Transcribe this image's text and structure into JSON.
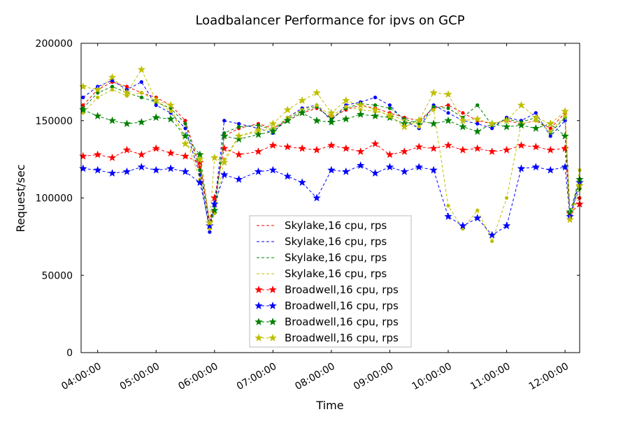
{
  "chart_data": {
    "type": "line",
    "title": "Loadbalancer Performance for ipvs on GCP",
    "xlabel": "Time",
    "ylabel": "Request/sec",
    "xlim": [
      "03:43:00",
      "12:15:00"
    ],
    "ylim": [
      0,
      200000
    ],
    "yticks": [
      0,
      50000,
      100000,
      150000,
      200000
    ],
    "yticklabels": [
      "0",
      "50000",
      "100000",
      "150000",
      "200000"
    ],
    "xticks": [
      "04:00:00",
      "05:00:00",
      "06:00:00",
      "07:00:00",
      "08:00:00",
      "09:00:00",
      "10:00:00",
      "11:00:00",
      "12:00:00"
    ],
    "grid": false,
    "legend_position": "lower-center",
    "series": [
      {
        "name": "Skylake,16 cpu, rps",
        "color": "#ff0000",
        "marker": "dot",
        "x": [
          "03:45",
          "04:00",
          "04:15",
          "04:30",
          "04:45",
          "05:00",
          "05:15",
          "05:30",
          "05:45",
          "05:55",
          "06:00",
          "06:10",
          "06:25",
          "06:45",
          "07:00",
          "07:15",
          "07:30",
          "07:45",
          "08:00",
          "08:15",
          "08:30",
          "08:45",
          "09:00",
          "09:15",
          "09:30",
          "09:45",
          "10:00",
          "10:15",
          "10:30",
          "10:45",
          "11:00",
          "11:15",
          "11:30",
          "11:45",
          "12:00",
          "12:05",
          "12:15"
        ],
        "y": [
          160000,
          170000,
          175000,
          172000,
          168000,
          165000,
          160000,
          150000,
          120000,
          85000,
          95000,
          140000,
          145000,
          148000,
          145000,
          150000,
          155000,
          158000,
          152000,
          157000,
          160000,
          158000,
          155000,
          152000,
          150000,
          158000,
          160000,
          155000,
          150000,
          148000,
          150000,
          148000,
          150000,
          145000,
          155000,
          90000,
          100000
        ]
      },
      {
        "name": "Skylake,16 cpu, rps",
        "color": "#0000ff",
        "marker": "dot",
        "x": [
          "03:45",
          "04:00",
          "04:15",
          "04:30",
          "04:45",
          "05:00",
          "05:15",
          "05:30",
          "05:45",
          "05:55",
          "06:00",
          "06:10",
          "06:25",
          "06:45",
          "07:00",
          "07:15",
          "07:30",
          "07:45",
          "08:00",
          "08:15",
          "08:30",
          "08:45",
          "09:00",
          "09:15",
          "09:30",
          "09:45",
          "10:00",
          "10:15",
          "10:30",
          "10:45",
          "11:00",
          "11:15",
          "11:30",
          "11:45",
          "12:00",
          "12:05",
          "12:15"
        ],
        "y": [
          165000,
          172000,
          176000,
          170000,
          175000,
          160000,
          155000,
          145000,
          115000,
          78000,
          95000,
          150000,
          148000,
          145000,
          142000,
          152000,
          158000,
          160000,
          150000,
          160000,
          162000,
          165000,
          160000,
          150000,
          145000,
          160000,
          155000,
          150000,
          148000,
          145000,
          152000,
          150000,
          155000,
          140000,
          150000,
          88000,
          112000
        ]
      },
      {
        "name": "Skylake,16 cpu, rps",
        "color": "#008000",
        "marker": "dot",
        "x": [
          "03:45",
          "04:00",
          "04:15",
          "04:30",
          "04:45",
          "05:00",
          "05:15",
          "05:30",
          "05:45",
          "05:55",
          "06:00",
          "06:10",
          "06:25",
          "06:45",
          "07:00",
          "07:15",
          "07:30",
          "07:45",
          "08:00",
          "08:15",
          "08:30",
          "08:45",
          "09:00",
          "09:15",
          "09:30",
          "09:45",
          "10:00",
          "10:15",
          "10:30",
          "10:45",
          "11:00",
          "11:15",
          "11:30",
          "11:45",
          "12:00",
          "12:05",
          "12:15"
        ],
        "y": [
          158000,
          168000,
          172000,
          168000,
          165000,
          162000,
          158000,
          148000,
          118000,
          82000,
          92000,
          142000,
          146000,
          147000,
          144000,
          151000,
          156000,
          159000,
          151000,
          158000,
          161000,
          160000,
          158000,
          151000,
          148000,
          159000,
          158000,
          152000,
          160000,
          147000,
          151000,
          149000,
          152000,
          142000,
          152000,
          89000,
          106000
        ]
      },
      {
        "name": "Skylake,16 cpu, rps",
        "color": "#bfbf00",
        "marker": "dot",
        "x": [
          "03:45",
          "04:00",
          "04:15",
          "04:30",
          "04:45",
          "05:00",
          "05:15",
          "05:30",
          "05:45",
          "05:55",
          "06:00",
          "06:10",
          "06:25",
          "06:45",
          "07:00",
          "07:15",
          "07:30",
          "07:45",
          "08:00",
          "08:15",
          "08:30",
          "08:45",
          "09:00",
          "09:15",
          "09:30",
          "09:45",
          "10:00",
          "10:15",
          "10:30",
          "10:45",
          "11:00",
          "11:15",
          "11:30",
          "11:45",
          "12:00",
          "12:05",
          "12:15"
        ],
        "y": [
          155000,
          165000,
          170000,
          166000,
          168000,
          163000,
          156000,
          140000,
          112000,
          80000,
          90000,
          125000,
          140000,
          143000,
          145000,
          152000,
          157000,
          160000,
          153000,
          159000,
          157000,
          156000,
          154000,
          150000,
          146000,
          157000,
          95000,
          80000,
          92000,
          72000,
          100000,
          148000,
          150000,
          143000,
          153000,
          86000,
          118000
        ]
      },
      {
        "name": "Broadwell,16 cpu, rps",
        "color": "#ff0000",
        "marker": "star",
        "x": [
          "03:45",
          "04:00",
          "04:15",
          "04:30",
          "04:45",
          "05:00",
          "05:15",
          "05:30",
          "05:45",
          "05:55",
          "06:00",
          "06:10",
          "06:25",
          "06:45",
          "07:00",
          "07:15",
          "07:30",
          "07:45",
          "08:00",
          "08:15",
          "08:30",
          "08:45",
          "09:00",
          "09:15",
          "09:30",
          "09:45",
          "10:00",
          "10:15",
          "10:30",
          "10:45",
          "11:00",
          "11:15",
          "11:30",
          "11:45",
          "12:00",
          "12:05",
          "12:15"
        ],
        "y": [
          127000,
          128000,
          126000,
          131000,
          128000,
          132000,
          129000,
          127000,
          123000,
          84000,
          100000,
          132000,
          128000,
          130000,
          134000,
          133000,
          132000,
          131000,
          134000,
          132000,
          130000,
          135000,
          128000,
          130000,
          133000,
          132000,
          134000,
          131000,
          132000,
          130000,
          131000,
          134000,
          133000,
          131000,
          132000,
          90000,
          96000
        ]
      },
      {
        "name": "Broadwell,16 cpu, rps",
        "color": "#0000ff",
        "marker": "star",
        "x": [
          "03:45",
          "04:00",
          "04:15",
          "04:30",
          "04:45",
          "05:00",
          "05:15",
          "05:30",
          "05:45",
          "05:55",
          "06:00",
          "06:10",
          "06:25",
          "06:45",
          "07:00",
          "07:15",
          "07:30",
          "07:45",
          "08:00",
          "08:15",
          "08:30",
          "08:45",
          "09:00",
          "09:15",
          "09:30",
          "09:45",
          "10:00",
          "10:15",
          "10:30",
          "10:45",
          "11:00",
          "11:15",
          "11:30",
          "11:45",
          "12:00",
          "12:05",
          "12:15"
        ],
        "y": [
          119000,
          118000,
          116000,
          117000,
          120000,
          118000,
          119000,
          117000,
          110000,
          82000,
          96000,
          115000,
          112000,
          117000,
          118000,
          114000,
          110000,
          100000,
          118000,
          117000,
          121000,
          116000,
          120000,
          117000,
          120000,
          118000,
          88000,
          82000,
          87000,
          76000,
          82000,
          119000,
          120000,
          118000,
          120000,
          88000,
          110000
        ]
      },
      {
        "name": "Broadwell,16 cpu, rps",
        "color": "#008000",
        "marker": "star",
        "x": [
          "03:45",
          "04:00",
          "04:15",
          "04:30",
          "04:45",
          "05:00",
          "05:15",
          "05:30",
          "05:45",
          "05:55",
          "06:00",
          "06:10",
          "06:25",
          "06:45",
          "07:00",
          "07:15",
          "07:30",
          "07:45",
          "08:00",
          "08:15",
          "08:30",
          "08:45",
          "09:00",
          "09:15",
          "09:30",
          "09:45",
          "10:00",
          "10:15",
          "10:30",
          "10:45",
          "11:00",
          "11:15",
          "11:30",
          "11:45",
          "12:00",
          "12:05",
          "12:15"
        ],
        "y": [
          157000,
          153000,
          150000,
          148000,
          149000,
          152000,
          151000,
          140000,
          128000,
          84000,
          92000,
          140000,
          138000,
          141000,
          143000,
          150000,
          155000,
          150000,
          149000,
          151000,
          154000,
          153000,
          152000,
          148000,
          150000,
          148000,
          150000,
          146000,
          143000,
          148000,
          146000,
          147000,
          145000,
          148000,
          140000,
          91000,
          112000
        ]
      },
      {
        "name": "Broadwell,16 cpu, rps",
        "color": "#bfbf00",
        "marker": "star",
        "x": [
          "03:45",
          "04:00",
          "04:15",
          "04:30",
          "04:45",
          "05:00",
          "05:15",
          "05:30",
          "05:45",
          "05:55",
          "06:00",
          "06:10",
          "06:25",
          "06:45",
          "07:00",
          "07:15",
          "07:30",
          "07:45",
          "08:00",
          "08:15",
          "08:30",
          "08:45",
          "09:00",
          "09:15",
          "09:30",
          "09:45",
          "10:00",
          "10:15",
          "10:30",
          "10:45",
          "11:00",
          "11:15",
          "11:30",
          "11:45",
          "12:00",
          "12:05",
          "12:15"
        ],
        "y": [
          172000,
          170000,
          178000,
          168000,
          183000,
          163000,
          160000,
          135000,
          125000,
          84000,
          126000,
          123000,
          140000,
          144000,
          148000,
          157000,
          163000,
          168000,
          155000,
          163000,
          160000,
          157000,
          153000,
          146000,
          150000,
          168000,
          167000,
          150000,
          151000,
          148000,
          150000,
          160000,
          152000,
          148000,
          156000,
          86000,
          108000
        ]
      }
    ]
  }
}
